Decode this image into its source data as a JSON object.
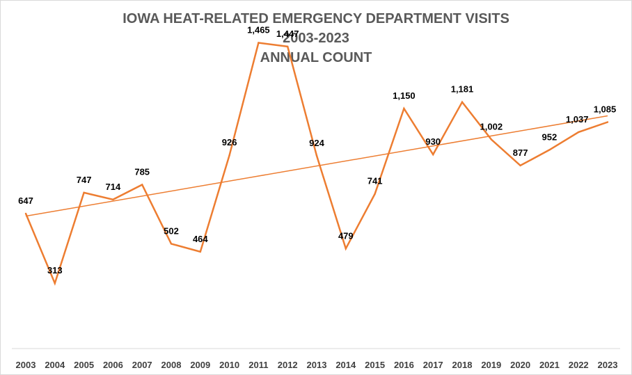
{
  "chart_data": {
    "type": "line",
    "title_lines": [
      "IOWA HEAT-RELATED EMERGENCY DEPARTMENT VISITS",
      "2003-2023",
      "ANNUAL COUNT"
    ],
    "categories": [
      "2003",
      "2004",
      "2005",
      "2006",
      "2007",
      "2008",
      "2009",
      "2010",
      "2011",
      "2012",
      "2013",
      "2014",
      "2015",
      "2016",
      "2017",
      "2018",
      "2019",
      "2020",
      "2021",
      "2022",
      "2023"
    ],
    "series": [
      {
        "values": [
          647,
          313,
          747,
          714,
          785,
          502,
          464,
          926,
          1465,
          1447,
          924,
          479,
          741,
          1150,
          930,
          1181,
          1002,
          877,
          952,
          1037,
          1085
        ],
        "data_labels": [
          "647",
          "313",
          "747",
          "714",
          "785",
          "502",
          "464",
          "926",
          "1,465",
          "1,447",
          "924",
          "479",
          "741",
          "1,150",
          "930",
          "1,181",
          "1,002",
          "877",
          "952",
          "1,037",
          "1,085"
        ],
        "color": "#ED7D31"
      }
    ],
    "trendline": {
      "type": "linear",
      "color": "#ED7D31"
    },
    "xlabel": "",
    "ylabel": "",
    "ylim": [
      0,
      1600
    ],
    "grid": false,
    "legend": "none",
    "axis_color": "#d9d9d9",
    "label_color": "#000000"
  }
}
